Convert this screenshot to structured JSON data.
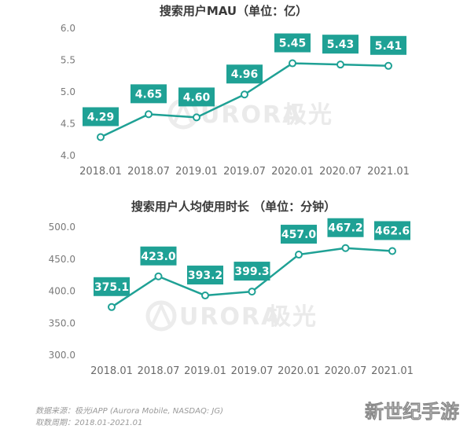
{
  "colors": {
    "line": "#1fa195",
    "label_bg": "#1fa195",
    "marker_fill": "#ffffff",
    "axis_text": "#7a7a7a"
  },
  "chart_data": [
    {
      "type": "line",
      "title": "搜索用户MAU（单位：亿）",
      "categories": [
        "2018.01",
        "2018.07",
        "2019.01",
        "2019.07",
        "2020.01",
        "2020.07",
        "2021.01"
      ],
      "values": [
        4.29,
        4.65,
        4.6,
        4.96,
        5.45,
        5.43,
        5.41
      ],
      "data_labels": [
        "4.29",
        "4.65",
        "4.60",
        "4.96",
        "5.45",
        "5.43",
        "5.41"
      ],
      "y_ticks": [
        "6.0",
        "5.5",
        "5.0",
        "4.5",
        "4.0"
      ],
      "ylim": [
        4.0,
        6.0
      ],
      "grid": false,
      "legend": "none"
    },
    {
      "type": "line",
      "title": "搜索用户人均使用时长 （单位：分钟）",
      "categories": [
        "2018.01",
        "2018.07",
        "2019.01",
        "2019.07",
        "2020.01",
        "2020.07",
        "2021.01"
      ],
      "values": [
        375.1,
        423.0,
        393.2,
        399.3,
        457.0,
        467.2,
        462.6
      ],
      "data_labels": [
        "375.1",
        "423.0",
        "393.2",
        "399.3",
        "457.0",
        "467.2",
        "462.6"
      ],
      "y_ticks": [
        "500.0",
        "450.0",
        "400.0",
        "350.0",
        "300.0"
      ],
      "ylim": [
        300,
        500
      ],
      "grid": false,
      "legend": "none"
    }
  ],
  "watermark": {
    "text": "URORA",
    "chinese": "极光",
    "icon": "aurora-logo-icon"
  },
  "footer": {
    "source": "数据来源：极光iAPP (Aurora Mobile, NASDAQ: JG)",
    "period": "取数周期：2018.01-2021.01"
  },
  "corner_watermark": "新世纪手游"
}
